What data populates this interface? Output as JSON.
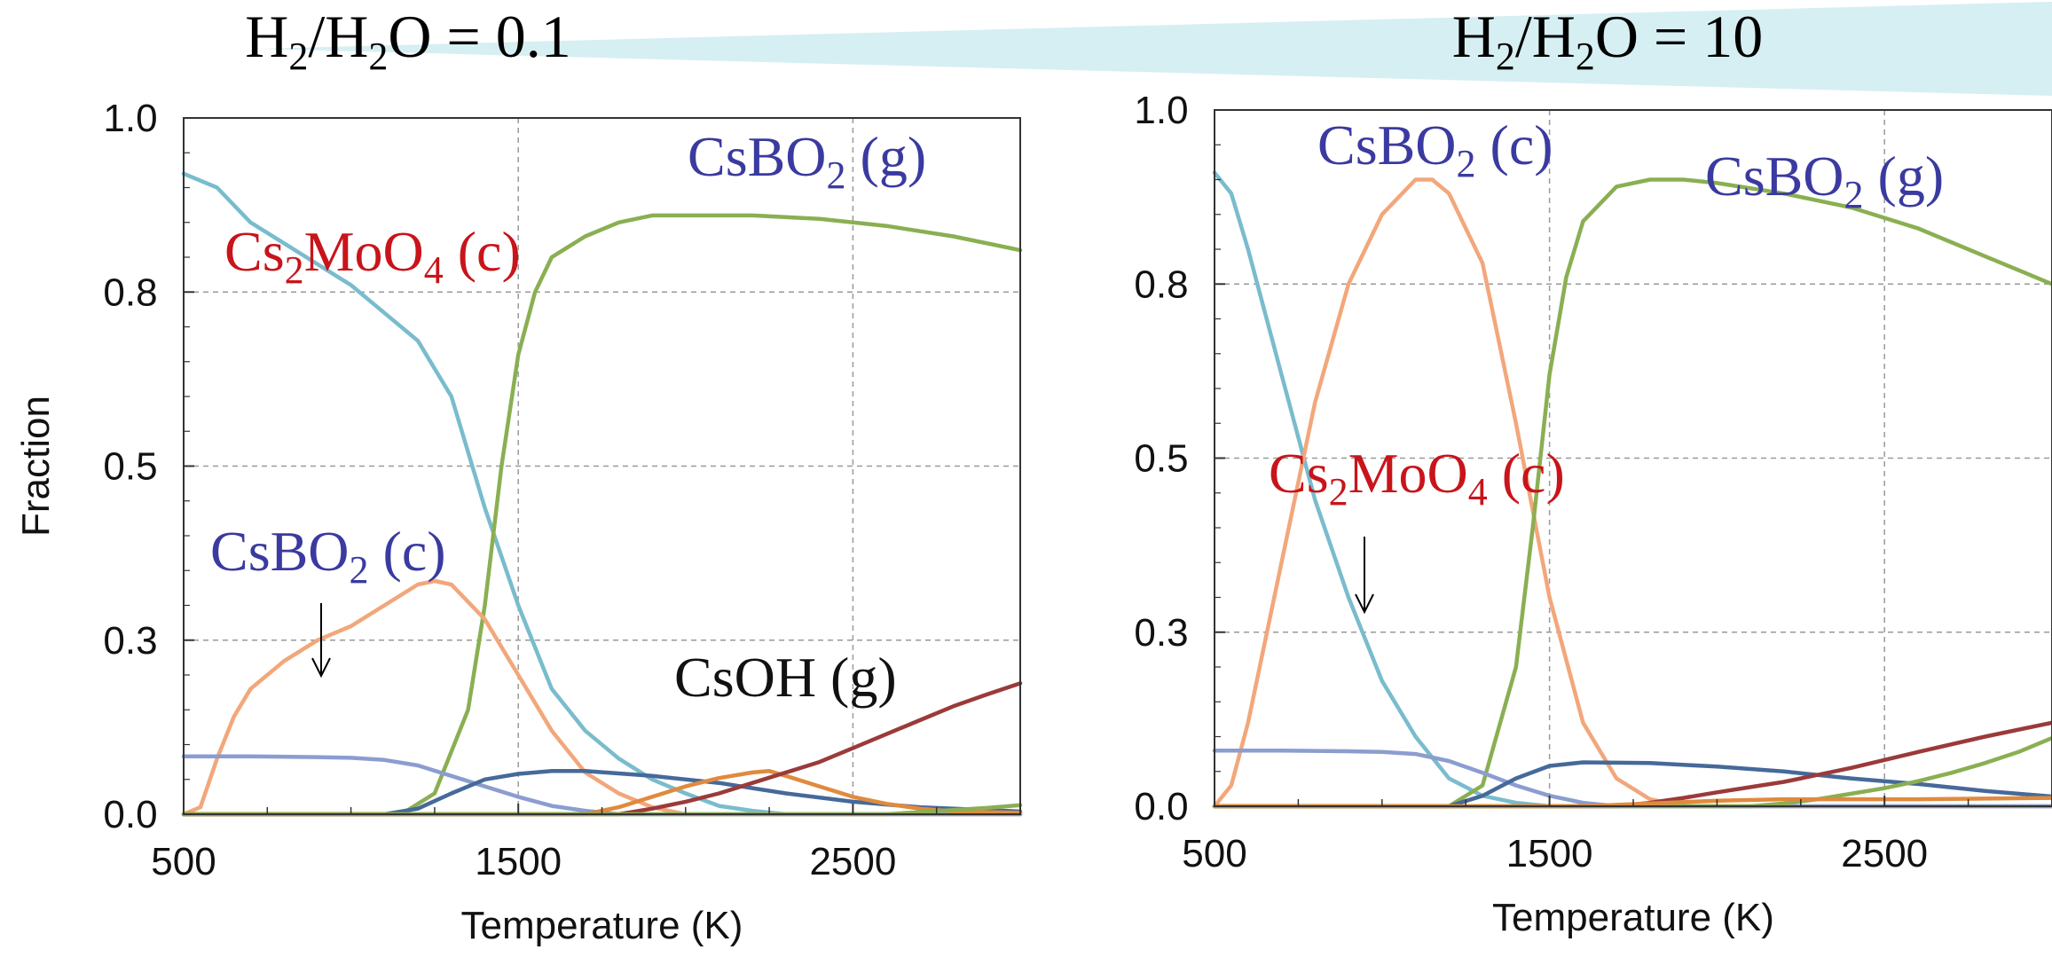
{
  "header": {
    "left_ratio": {
      "prefix": "H",
      "sub1": "2",
      "mid": "/H",
      "sub2": "2",
      "suffix": "O = 0.1"
    },
    "right_ratio": {
      "prefix": "H",
      "sub1": "2",
      "mid": "/H",
      "sub2": "2",
      "suffix": "O = 10"
    },
    "banner_color": "#d6eff2"
  },
  "colors": {
    "cyan": "#79bccd",
    "green": "#8aaf52",
    "orange": "#f2a77b",
    "lavender": "#8b9dd0",
    "navy": "#46699a",
    "darkorange": "#e08a3e",
    "maroon": "#9b3a3a",
    "label_blue": "#3a3aa0",
    "label_red": "#c8141a",
    "label_black": "#111111"
  },
  "chart_data": [
    {
      "type": "line",
      "xlabel": "Temperature (K)",
      "ylabel": "Fraction",
      "xlim": [
        500,
        3000
      ],
      "ylim": [
        0,
        1
      ],
      "xticks": [
        500,
        1500,
        2500
      ],
      "xtick_labels": [
        "500",
        "1500",
        "2500"
      ],
      "yticks": [
        0,
        0.25,
        0.5,
        0.75,
        1
      ],
      "ytick_labels": [
        "0.0",
        "0.3",
        "0.5",
        "0.8",
        "1.0"
      ],
      "grid": true,
      "series": [
        {
          "color": "cyan",
          "points": [
            [
              500,
              0.92
            ],
            [
              600,
              0.9
            ],
            [
              700,
              0.85
            ],
            [
              800,
              0.82
            ],
            [
              900,
              0.79
            ],
            [
              1000,
              0.76
            ],
            [
              1100,
              0.72
            ],
            [
              1200,
              0.68
            ],
            [
              1300,
              0.6
            ],
            [
              1400,
              0.44
            ],
            [
              1500,
              0.3
            ],
            [
              1600,
              0.18
            ],
            [
              1700,
              0.12
            ],
            [
              1800,
              0.08
            ],
            [
              1900,
              0.05
            ],
            [
              2000,
              0.03
            ],
            [
              2100,
              0.012
            ],
            [
              2200,
              0.005
            ],
            [
              2300,
              0.0
            ],
            [
              3000,
              0.0
            ]
          ]
        },
        {
          "color": "green",
          "points": [
            [
              500,
              0.0
            ],
            [
              1150,
              0.0
            ],
            [
              1250,
              0.03
            ],
            [
              1350,
              0.15
            ],
            [
              1400,
              0.3
            ],
            [
              1450,
              0.5
            ],
            [
              1500,
              0.66
            ],
            [
              1550,
              0.75
            ],
            [
              1600,
              0.8
            ],
            [
              1700,
              0.83
            ],
            [
              1800,
              0.85
            ],
            [
              1900,
              0.86
            ],
            [
              2000,
              0.86
            ],
            [
              2200,
              0.86
            ],
            [
              2400,
              0.855
            ],
            [
              2600,
              0.845
            ],
            [
              2800,
              0.83
            ],
            [
              3000,
              0.81
            ]
          ]
        },
        {
          "color": "orange",
          "points": [
            [
              500,
              0.0
            ],
            [
              550,
              0.01
            ],
            [
              600,
              0.08
            ],
            [
              650,
              0.14
            ],
            [
              700,
              0.18
            ],
            [
              800,
              0.22
            ],
            [
              900,
              0.25
            ],
            [
              1000,
              0.27
            ],
            [
              1100,
              0.3
            ],
            [
              1200,
              0.33
            ],
            [
              1250,
              0.335
            ],
            [
              1300,
              0.33
            ],
            [
              1400,
              0.28
            ],
            [
              1500,
              0.2
            ],
            [
              1600,
              0.12
            ],
            [
              1700,
              0.06
            ],
            [
              1800,
              0.03
            ],
            [
              1900,
              0.01
            ],
            [
              2000,
              0.0
            ],
            [
              3000,
              0.0
            ]
          ]
        },
        {
          "color": "lavender",
          "points": [
            [
              500,
              0.083
            ],
            [
              700,
              0.083
            ],
            [
              900,
              0.082
            ],
            [
              1000,
              0.081
            ],
            [
              1100,
              0.078
            ],
            [
              1200,
              0.07
            ],
            [
              1300,
              0.055
            ],
            [
              1400,
              0.04
            ],
            [
              1500,
              0.025
            ],
            [
              1600,
              0.012
            ],
            [
              1700,
              0.005
            ],
            [
              1800,
              0.0
            ],
            [
              3000,
              0.0
            ]
          ]
        },
        {
          "color": "navy",
          "points": [
            [
              500,
              0.0
            ],
            [
              1100,
              0.0
            ],
            [
              1200,
              0.008
            ],
            [
              1300,
              0.03
            ],
            [
              1400,
              0.05
            ],
            [
              1500,
              0.058
            ],
            [
              1600,
              0.062
            ],
            [
              1700,
              0.062
            ],
            [
              1900,
              0.055
            ],
            [
              2100,
              0.045
            ],
            [
              2300,
              0.03
            ],
            [
              2500,
              0.018
            ],
            [
              2700,
              0.01
            ],
            [
              3000,
              0.004
            ]
          ]
        },
        {
          "color": "darkorange",
          "points": [
            [
              500,
              0.0
            ],
            [
              1700,
              0.0
            ],
            [
              1800,
              0.01
            ],
            [
              1900,
              0.025
            ],
            [
              2000,
              0.04
            ],
            [
              2100,
              0.052
            ],
            [
              2200,
              0.06
            ],
            [
              2250,
              0.062
            ],
            [
              2300,
              0.055
            ],
            [
              2400,
              0.04
            ],
            [
              2500,
              0.025
            ],
            [
              2600,
              0.015
            ],
            [
              2700,
              0.008
            ],
            [
              2800,
              0.004
            ],
            [
              3000,
              0.002
            ]
          ]
        },
        {
          "color": "maroon",
          "points": [
            [
              500,
              0.0
            ],
            [
              1800,
              0.0
            ],
            [
              1900,
              0.008
            ],
            [
              2000,
              0.018
            ],
            [
              2100,
              0.03
            ],
            [
              2200,
              0.045
            ],
            [
              2300,
              0.06
            ],
            [
              2400,
              0.075
            ],
            [
              2500,
              0.095
            ],
            [
              2600,
              0.115
            ],
            [
              2700,
              0.135
            ],
            [
              2800,
              0.155
            ],
            [
              2900,
              0.172
            ],
            [
              3000,
              0.188
            ]
          ]
        },
        {
          "color": "green",
          "points": [
            [
              500,
              0.0
            ],
            [
              2600,
              0.0
            ],
            [
              2700,
              0.003
            ],
            [
              2800,
              0.006
            ],
            [
              2900,
              0.009
            ],
            [
              3000,
              0.013
            ]
          ]
        }
      ],
      "annotations": [
        {
          "text": "CsBO",
          "sub": "2",
          "tail": " (g)",
          "color": "label_blue"
        },
        {
          "text": "Cs",
          "sub": "2",
          "mid": "MoO",
          "sub2": "4",
          "tail": " (c)",
          "color": "label_red"
        },
        {
          "text": "CsBO",
          "sub": "2",
          "tail": " (c)",
          "color": "label_blue"
        },
        {
          "text": "CsOH",
          "sub": "",
          "tail": " (g)",
          "color": "label_black"
        }
      ]
    },
    {
      "type": "line",
      "xlabel": "Temperature (K)",
      "ylabel": "",
      "xlim": [
        500,
        3000
      ],
      "ylim": [
        0,
        1
      ],
      "xticks": [
        500,
        1500,
        2500
      ],
      "xtick_labels": [
        "500",
        "1500",
        "2500"
      ],
      "yticks": [
        0,
        0.25,
        0.5,
        0.75,
        1
      ],
      "ytick_labels": [
        "0.0",
        "0.3",
        "0.5",
        "0.8",
        "1.0"
      ],
      "grid": true,
      "series": [
        {
          "color": "cyan",
          "points": [
            [
              500,
              0.91
            ],
            [
              550,
              0.88
            ],
            [
              600,
              0.8
            ],
            [
              700,
              0.62
            ],
            [
              800,
              0.44
            ],
            [
              900,
              0.3
            ],
            [
              1000,
              0.18
            ],
            [
              1100,
              0.1
            ],
            [
              1200,
              0.04
            ],
            [
              1300,
              0.015
            ],
            [
              1400,
              0.005
            ],
            [
              1500,
              0.0
            ],
            [
              3000,
              0.0
            ]
          ]
        },
        {
          "color": "orange",
          "points": [
            [
              500,
              0.0
            ],
            [
              550,
              0.03
            ],
            [
              600,
              0.12
            ],
            [
              700,
              0.35
            ],
            [
              800,
              0.58
            ],
            [
              900,
              0.75
            ],
            [
              1000,
              0.85
            ],
            [
              1100,
              0.9
            ],
            [
              1150,
              0.9
            ],
            [
              1200,
              0.88
            ],
            [
              1300,
              0.78
            ],
            [
              1400,
              0.55
            ],
            [
              1500,
              0.3
            ],
            [
              1600,
              0.12
            ],
            [
              1700,
              0.04
            ],
            [
              1800,
              0.01
            ],
            [
              1900,
              0.0
            ],
            [
              3000,
              0.0
            ]
          ]
        },
        {
          "color": "green",
          "points": [
            [
              500,
              0.0
            ],
            [
              1200,
              0.0
            ],
            [
              1300,
              0.03
            ],
            [
              1400,
              0.2
            ],
            [
              1450,
              0.4
            ],
            [
              1500,
              0.62
            ],
            [
              1550,
              0.76
            ],
            [
              1600,
              0.84
            ],
            [
              1700,
              0.89
            ],
            [
              1800,
              0.9
            ],
            [
              1900,
              0.9
            ],
            [
              2000,
              0.895
            ],
            [
              2200,
              0.88
            ],
            [
              2400,
              0.86
            ],
            [
              2600,
              0.83
            ],
            [
              2800,
              0.79
            ],
            [
              3000,
              0.75
            ]
          ]
        },
        {
          "color": "lavender",
          "points": [
            [
              500,
              0.08
            ],
            [
              700,
              0.08
            ],
            [
              900,
              0.079
            ],
            [
              1000,
              0.078
            ],
            [
              1100,
              0.075
            ],
            [
              1200,
              0.065
            ],
            [
              1300,
              0.048
            ],
            [
              1400,
              0.03
            ],
            [
              1500,
              0.015
            ],
            [
              1600,
              0.005
            ],
            [
              1700,
              0.0
            ],
            [
              3000,
              0.0
            ]
          ]
        },
        {
          "color": "navy",
          "points": [
            [
              500,
              0.0
            ],
            [
              1200,
              0.0
            ],
            [
              1300,
              0.015
            ],
            [
              1400,
              0.04
            ],
            [
              1500,
              0.058
            ],
            [
              1600,
              0.063
            ],
            [
              1800,
              0.062
            ],
            [
              2000,
              0.057
            ],
            [
              2200,
              0.05
            ],
            [
              2400,
              0.04
            ],
            [
              2600,
              0.032
            ],
            [
              2800,
              0.022
            ],
            [
              3000,
              0.014
            ]
          ]
        },
        {
          "color": "maroon",
          "points": [
            [
              500,
              0.0
            ],
            [
              1700,
              0.0
            ],
            [
              1800,
              0.005
            ],
            [
              1900,
              0.012
            ],
            [
              2000,
              0.02
            ],
            [
              2200,
              0.035
            ],
            [
              2400,
              0.055
            ],
            [
              2600,
              0.078
            ],
            [
              2800,
              0.1
            ],
            [
              3000,
              0.12
            ]
          ]
        },
        {
          "color": "green",
          "points": [
            [
              500,
              0.0
            ],
            [
              2100,
              0.0
            ],
            [
              2200,
              0.004
            ],
            [
              2300,
              0.01
            ],
            [
              2400,
              0.018
            ],
            [
              2500,
              0.026
            ],
            [
              2600,
              0.036
            ],
            [
              2700,
              0.048
            ],
            [
              2800,
              0.062
            ],
            [
              2900,
              0.078
            ],
            [
              3000,
              0.098
            ]
          ]
        },
        {
          "color": "darkorange",
          "points": [
            [
              500,
              0.0
            ],
            [
              1600,
              0.0
            ],
            [
              1800,
              0.004
            ],
            [
              2000,
              0.008
            ],
            [
              2200,
              0.01
            ],
            [
              2400,
              0.01
            ],
            [
              2600,
              0.01
            ],
            [
              2800,
              0.011
            ],
            [
              3000,
              0.012
            ]
          ]
        }
      ],
      "annotations": [
        {
          "text": "CsBO",
          "sub": "2",
          "tail": " (c)",
          "color": "label_blue"
        },
        {
          "text": "CsBO",
          "sub": "2",
          "tail": " (g)",
          "color": "label_blue"
        },
        {
          "text": "Cs",
          "sub": "2",
          "mid": "MoO",
          "sub2": "4",
          "tail": " (c)",
          "color": "label_red"
        }
      ]
    }
  ]
}
